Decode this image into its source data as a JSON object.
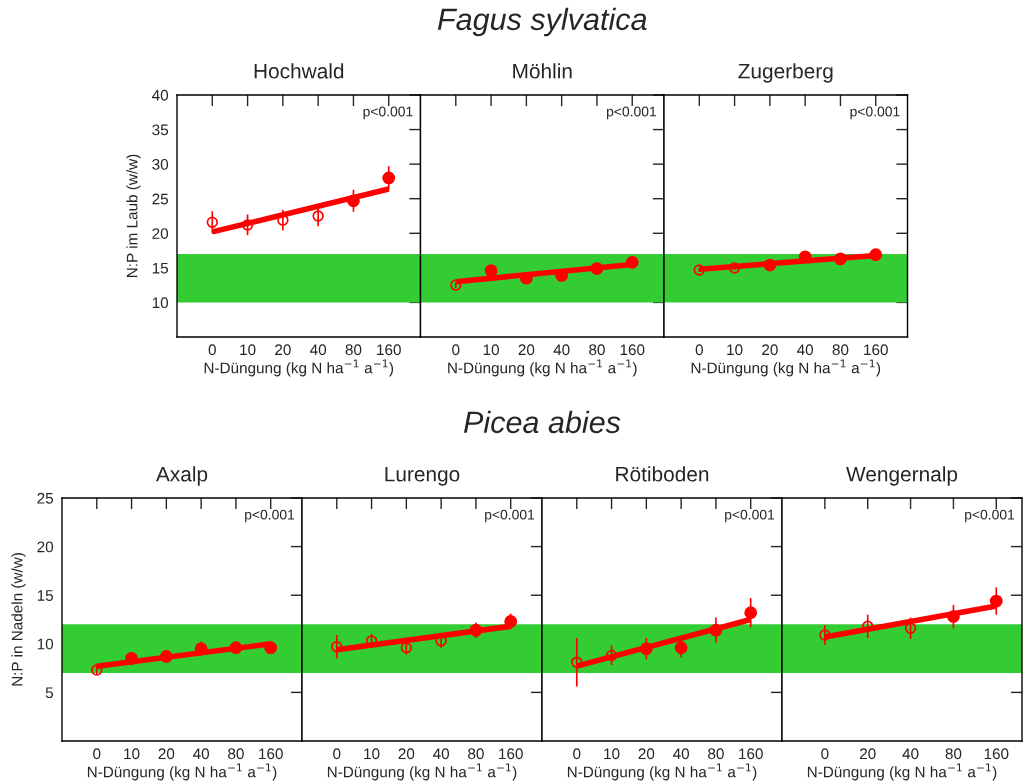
{
  "chart_data": [
    {
      "type": "scatter",
      "title": "Hochwald",
      "xlabel": "N-Düngung (kg N ha$^{−1}$ a$^{−1}$)",
      "ylabel": "N:P im Laub (w/w)",
      "categories": [
        "0",
        "10",
        "20",
        "40",
        "80",
        "160"
      ],
      "ylim": [
        5,
        40
      ],
      "yticks": [
        10,
        15,
        20,
        25,
        30,
        35,
        40
      ],
      "grid": false,
      "marker": "circle",
      "annotations": [
        "p<0.001"
      ],
      "bands": [
        {
          "axis": "y",
          "from": 10,
          "to": 17,
          "color": "#33cc33"
        }
      ],
      "series": [
        {
          "color": "#ff0000",
          "values": [
            21.6,
            21.2,
            21.9,
            22.5,
            null,
            null
          ],
          "errors": [
            1.6,
            1.5,
            1.5,
            1.5,
            null,
            null
          ]
        },
        {
          "color": "#ff0000",
          "values": [
            null,
            null,
            null,
            null,
            24.7,
            28.0
          ],
          "errors": [
            null,
            null,
            null,
            null,
            1.6,
            1.7
          ]
        },
        {
          "type": "line",
          "color": "#ff0000",
          "marker": "none",
          "x": [
            "0",
            "160"
          ],
          "values": [
            20.2,
            26.4
          ]
        }
      ]
    },
    {
      "type": "scatter",
      "subtitle": "Fagus sylvatica",
      "title": "Möhlin",
      "xlabel": "N-Düngung (kg N ha$^{−1}$ a$^{−1}$)",
      "categories": [
        "0",
        "10",
        "20",
        "40",
        "80",
        "160"
      ],
      "ylim": [
        5,
        40
      ],
      "yticks": [
        10,
        15,
        20,
        25,
        30,
        35,
        40
      ],
      "tick_labels": "x",
      "grid": false,
      "marker": "circle",
      "annotations": [
        "p<0.001"
      ],
      "bands": [
        {
          "axis": "y",
          "from": 10,
          "to": 17,
          "color": "#33cc33"
        }
      ],
      "series": [
        {
          "color": "#ff0000",
          "values": [
            12.5,
            null,
            null,
            null,
            null,
            null
          ],
          "errors": [
            0.4,
            null,
            null,
            null,
            null,
            null
          ]
        },
        {
          "color": "#ff0000",
          "values": [
            null,
            14.6,
            13.5,
            13.9,
            14.9,
            15.8
          ],
          "errors": [
            null,
            0.4,
            0.4,
            0.4,
            0.4,
            0.4
          ]
        },
        {
          "type": "line",
          "color": "#ff0000",
          "marker": "none",
          "x": [
            "0",
            "160"
          ],
          "values": [
            13.0,
            15.5
          ]
        }
      ]
    },
    {
      "type": "scatter",
      "title": "Zugerberg",
      "xlabel": "N-Düngung (kg N ha$^{−1}$ a$^{−1}$)",
      "categories": [
        "0",
        "10",
        "20",
        "40",
        "80",
        "160"
      ],
      "ylim": [
        5,
        40
      ],
      "yticks": [
        10,
        15,
        20,
        25,
        30,
        35,
        40
      ],
      "tick_labels": "x",
      "grid": false,
      "marker": "circle",
      "annotations": [
        "p<0.001"
      ],
      "bands": [
        {
          "axis": "y",
          "from": 10,
          "to": 17,
          "color": "#33cc33"
        }
      ],
      "series": [
        {
          "color": "#ff0000",
          "values": [
            14.7,
            15.0,
            null,
            null,
            null,
            null
          ],
          "errors": [
            0.3,
            0.3,
            null,
            null,
            null,
            null
          ]
        },
        {
          "color": "#ff0000",
          "values": [
            null,
            null,
            15.4,
            16.6,
            16.3,
            16.9
          ],
          "errors": [
            null,
            null,
            0.3,
            0.4,
            0.3,
            0.3
          ]
        },
        {
          "type": "line",
          "color": "#ff0000",
          "marker": "none",
          "x": [
            "0",
            "160"
          ],
          "values": [
            14.8,
            16.8
          ]
        }
      ]
    },
    {
      "type": "scatter",
      "title": "Axalp",
      "xlabel": "N-Düngung (kg N ha$^{−1}$ a$^{−1}$)",
      "ylabel": "N:P in Nadeln (w/w)",
      "categories": [
        "0",
        "10",
        "20",
        "40",
        "80",
        "160"
      ],
      "ylim": [
        0,
        25
      ],
      "yticks": [
        5,
        10,
        15,
        20,
        25
      ],
      "grid": false,
      "marker": "circle",
      "annotations": [
        "p<0.001"
      ],
      "bands": [
        {
          "axis": "y",
          "from": 7,
          "to": 12,
          "color": "#33cc33"
        }
      ],
      "series": [
        {
          "color": "#ff0000",
          "values": [
            7.3,
            null,
            null,
            null,
            null,
            null
          ],
          "errors": [
            0.5,
            null,
            null,
            null,
            null,
            null
          ]
        },
        {
          "color": "#ff0000",
          "values": [
            null,
            8.5,
            8.7,
            9.5,
            9.6,
            9.6
          ],
          "errors": [
            null,
            0.6,
            0.6,
            0.7,
            0.6,
            0.6
          ]
        },
        {
          "type": "line",
          "color": "#ff0000",
          "marker": "none",
          "x": [
            "0",
            "160"
          ],
          "values": [
            7.7,
            10.0
          ]
        }
      ]
    },
    {
      "type": "scatter",
      "title": "Lurengo",
      "xlabel": "N-Düngung (kg N ha$^{−1}$ a$^{−1}$)",
      "categories": [
        "0",
        "10",
        "20",
        "40",
        "80",
        "160"
      ],
      "ylim": [
        0,
        25
      ],
      "yticks": [
        5,
        10,
        15,
        20,
        25
      ],
      "tick_labels": "x",
      "grid": false,
      "marker": "circle",
      "annotations": [
        "p<0.001"
      ],
      "bands": [
        {
          "axis": "y",
          "from": 7,
          "to": 12,
          "color": "#33cc33"
        }
      ],
      "series": [
        {
          "color": "#ff0000",
          "values": [
            9.7,
            10.3,
            9.6,
            10.3,
            null,
            null
          ],
          "errors": [
            1.2,
            0.7,
            0.7,
            0.7,
            null,
            null
          ]
        },
        {
          "color": "#ff0000",
          "values": [
            null,
            null,
            null,
            null,
            11.4,
            12.3
          ],
          "errors": [
            null,
            null,
            null,
            null,
            0.8,
            0.8
          ]
        },
        {
          "type": "line",
          "color": "#ff0000",
          "marker": "none",
          "x": [
            "0",
            "160"
          ],
          "values": [
            9.4,
            11.8
          ]
        }
      ]
    },
    {
      "type": "scatter",
      "subtitle": "Picea abies",
      "title": "Rötiboden",
      "xlabel": "N-Düngung (kg N ha$^{−1}$ a$^{−1}$)",
      "categories": [
        "0",
        "10",
        "20",
        "40",
        "80",
        "160"
      ],
      "ylim": [
        0,
        25
      ],
      "yticks": [
        5,
        10,
        15,
        20,
        25
      ],
      "tick_labels": "x",
      "grid": false,
      "marker": "circle",
      "annotations": [
        "p<0.001"
      ],
      "bands": [
        {
          "axis": "y",
          "from": 7,
          "to": 12,
          "color": "#33cc33"
        }
      ],
      "series": [
        {
          "color": "#ff0000",
          "values": [
            8.1,
            8.8,
            null,
            null,
            null,
            null
          ],
          "errors": [
            2.5,
            1.0,
            null,
            null,
            null,
            null
          ]
        },
        {
          "color": "#ff0000",
          "values": [
            null,
            null,
            9.5,
            9.6,
            11.4,
            13.2
          ],
          "errors": [
            null,
            null,
            1.1,
            1.0,
            1.3,
            1.5
          ]
        },
        {
          "type": "line",
          "color": "#ff0000",
          "marker": "none",
          "x": [
            "0",
            "160"
          ],
          "values": [
            7.7,
            12.5
          ]
        }
      ]
    },
    {
      "type": "scatter",
      "title": "Wengernalp",
      "xlabel": "N-Düngung (kg N ha$^{−1}$ a$^{−1}$)",
      "categories": [
        "0",
        "20",
        "40",
        "80",
        "160"
      ],
      "ylim": [
        0,
        25
      ],
      "yticks": [
        5,
        10,
        15,
        20,
        25
      ],
      "tick_labels": "x",
      "grid": false,
      "marker": "circle",
      "annotations": [
        "p<0.001"
      ],
      "bands": [
        {
          "axis": "y",
          "from": 7,
          "to": 12,
          "color": "#33cc33"
        }
      ],
      "series": [
        {
          "color": "#ff0000",
          "values": [
            10.9,
            11.8,
            11.6,
            null,
            null
          ],
          "errors": [
            1.0,
            1.2,
            1.1,
            null,
            null
          ]
        },
        {
          "color": "#ff0000",
          "values": [
            null,
            null,
            null,
            12.8,
            14.4
          ],
          "errors": [
            null,
            null,
            null,
            1.2,
            1.4
          ]
        },
        {
          "type": "line",
          "color": "#ff0000",
          "marker": "none",
          "x": [
            "0",
            "160"
          ],
          "values": [
            10.7,
            13.9
          ]
        }
      ]
    }
  ]
}
